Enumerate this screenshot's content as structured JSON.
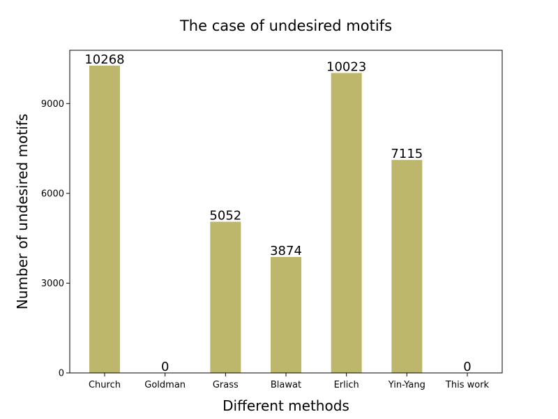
{
  "chart_data": {
    "type": "bar",
    "title": "The case of undesired motifs",
    "xlabel": "Different methods",
    "ylabel": "Number of undesired motifs",
    "categories": [
      "Church",
      "Goldman",
      "Grass",
      "Blawat",
      "Erlich",
      "Yin-Yang",
      "This work"
    ],
    "values": [
      10268,
      0,
      5052,
      3874,
      10023,
      7115,
      0
    ],
    "data_labels": [
      "10268",
      "0",
      "5052",
      "3874",
      "10023",
      "7115",
      "0"
    ],
    "ylim": [
      0,
      10781
    ],
    "yticks": [
      0,
      3000,
      6000,
      9000
    ],
    "ytick_labels": [
      "0",
      "3000",
      "6000",
      "9000"
    ],
    "grid": false,
    "bar_color": "#bdb76b"
  }
}
